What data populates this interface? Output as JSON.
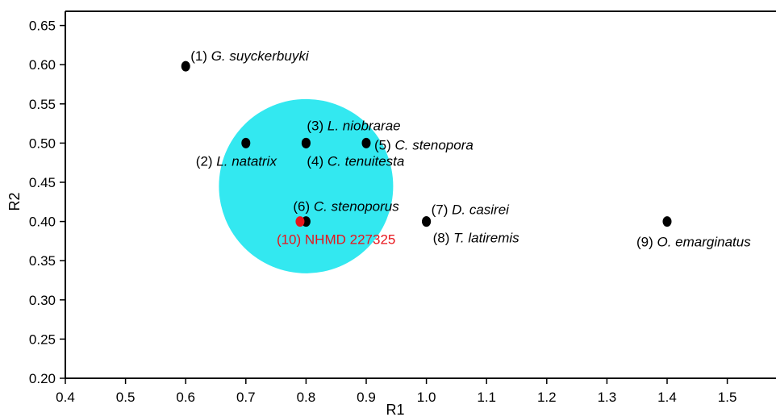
{
  "chart_data": {
    "type": "scatter",
    "title": "",
    "xlabel": "R1",
    "ylabel": "R2",
    "xlim": [
      0.4,
      1.59
    ],
    "ylim": [
      0.2,
      0.67
    ],
    "xticks": [
      "0.4",
      "0.5",
      "0.6",
      "0.7",
      "0.8",
      "0.9",
      "1.0",
      "1.1",
      "1.2",
      "1.3",
      "1.4",
      "1.5"
    ],
    "yticks": [
      "0.20",
      "0.25",
      "0.30",
      "0.35",
      "0.40",
      "0.45",
      "0.50",
      "0.55",
      "0.60",
      "0.65"
    ],
    "grid": false,
    "highlight_region": {
      "shape": "circle",
      "center_x": 0.8,
      "center_y": 0.445,
      "color": "#33e8f0"
    },
    "points": [
      {
        "id": "(1)",
        "name": "G. suyckerbuyki",
        "x": 0.6,
        "y": 0.598,
        "color": "#000000",
        "label_pos": "above-right"
      },
      {
        "id": "(2)",
        "name": "L. natatrix",
        "x": 0.7,
        "y": 0.5,
        "color": "#000000",
        "label_pos": "below-left"
      },
      {
        "id": "(3)",
        "name": "L. niobrarae",
        "x": 0.8,
        "y": 0.5,
        "color": "#000000",
        "label_pos": "above"
      },
      {
        "id": "(4)",
        "name": "C. tenuitesta",
        "x": 0.8,
        "y": 0.5,
        "color": "#000000",
        "label_pos": "below"
      },
      {
        "id": "(5)",
        "name": "C. stenopora",
        "x": 0.9,
        "y": 0.5,
        "color": "#000000",
        "label_pos": "right"
      },
      {
        "id": "(6)",
        "name": "C. stenoporus",
        "x": 0.8,
        "y": 0.4,
        "color": "#000000",
        "label_pos": "above"
      },
      {
        "id": "(7)",
        "name": "D. casirei",
        "x": 1.0,
        "y": 0.4,
        "color": "#000000",
        "label_pos": "above-right"
      },
      {
        "id": "(8)",
        "name": "T. latiremis",
        "x": 1.0,
        "y": 0.4,
        "color": "#000000",
        "label_pos": "below-right"
      },
      {
        "id": "(9)",
        "name": "O. emarginatus",
        "x": 1.4,
        "y": 0.4,
        "color": "#000000",
        "label_pos": "below"
      },
      {
        "id": "(10)",
        "name": "NHMD 227325",
        "x": 0.79,
        "y": 0.4,
        "color": "#e8141b",
        "label_pos": "below",
        "italic": false
      }
    ]
  }
}
